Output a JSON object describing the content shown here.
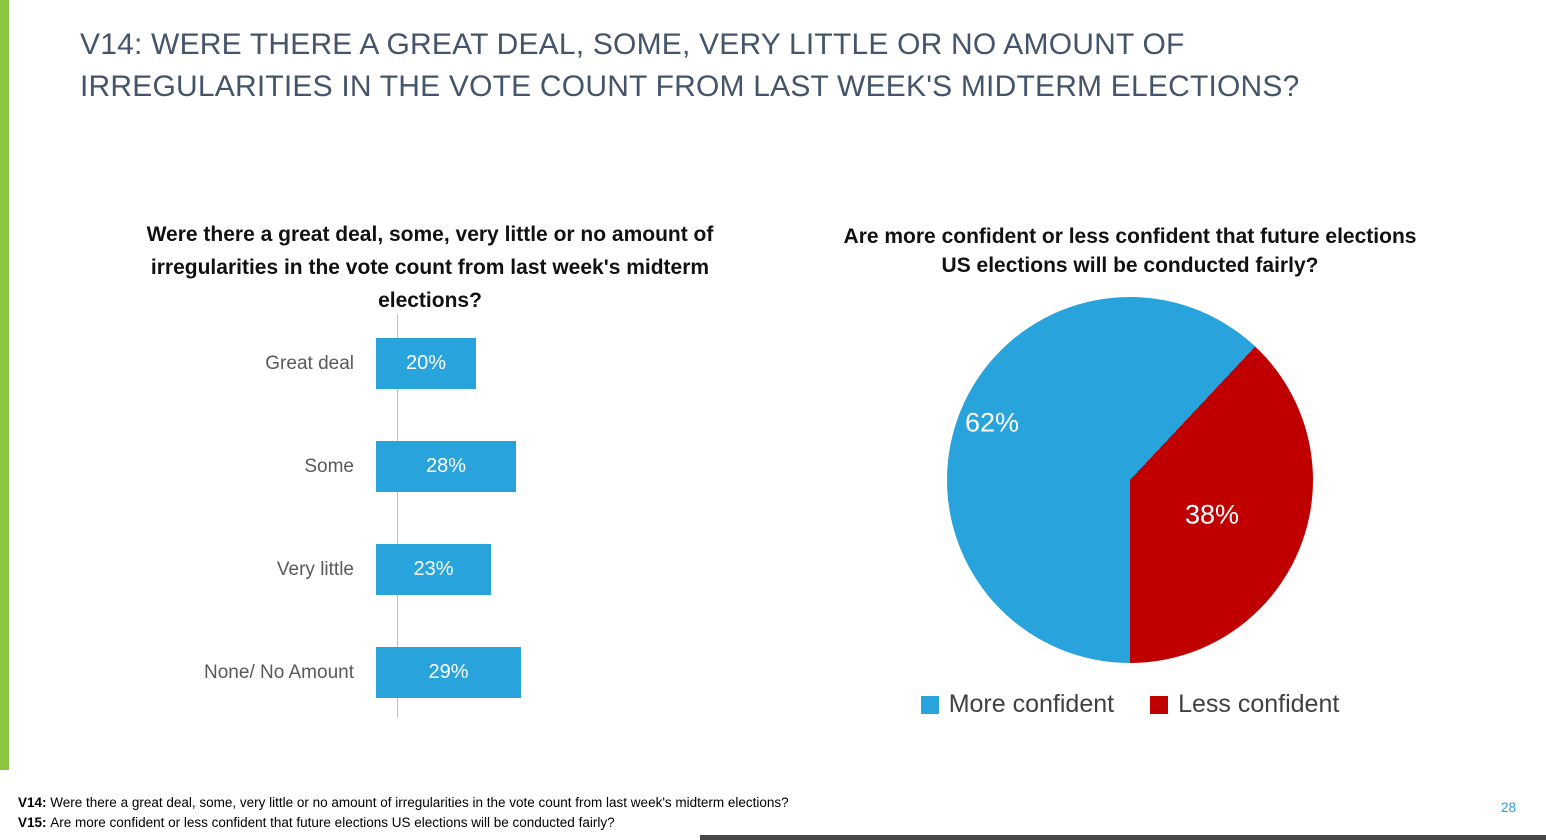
{
  "slide": {
    "title_lines": [
      "V14: WERE THERE A GREAT DEAL, SOME, VERY LITTLE OR NO AMOUNT OF",
      "IRREGULARITIES IN THE VOTE COUNT FROM LAST WEEK'S MIDTERM ELECTIONS?"
    ]
  },
  "colors": {
    "accent_green": "#8CC641",
    "title": "#44546A",
    "bar_blue": "#29A3DC",
    "pie_blue": "#29A3DC",
    "pie_red": "#C00000",
    "page_number": "#2E9BD5"
  },
  "chart_data": [
    {
      "type": "bar",
      "orientation": "horizontal",
      "title": "Were there a great deal, some, very little or no amount of irregularities in the vote count from last week's midterm elections?",
      "categories": [
        "Great deal",
        "Some",
        "Very little",
        "None/ No Amount"
      ],
      "values": [
        20,
        28,
        23,
        29
      ],
      "value_labels": [
        "20%",
        "28%",
        "23%",
        "29%"
      ],
      "xlim": [
        0,
        30
      ],
      "grid": false,
      "bar_color": "#29A3DC"
    },
    {
      "type": "pie",
      "title": "Are more confident or less confident that future elections US elections will be conducted fairly?",
      "slices": [
        {
          "label": "More confident",
          "value": 62,
          "label_text": "62%",
          "color": "#29A3DC"
        },
        {
          "label": "Less confident",
          "value": 38,
          "label_text": "38%",
          "color": "#C00000"
        }
      ],
      "legend_position": "bottom"
    }
  ],
  "footnotes": [
    {
      "prefix": "V14:",
      "text": "Were there a great deal, some, very little or no amount of irregularities in the vote count from last week's midterm elections?"
    },
    {
      "prefix": "V15:",
      "text": "Are more confident or less confident that future elections US elections will be conducted fairly?"
    }
  ],
  "page_number": "28"
}
